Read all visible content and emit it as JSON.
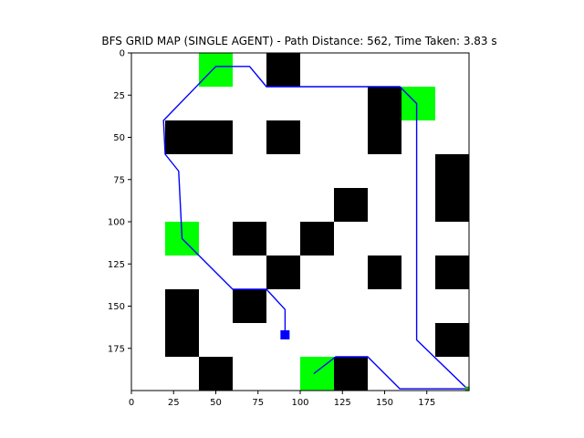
{
  "chart_data": {
    "type": "heatmap",
    "title": "BFS GRID MAP (SINGLE AGENT) - Path Distance: 562, Time Taken: 3.83 s",
    "xlim": [
      0,
      200
    ],
    "ylim": [
      200,
      0
    ],
    "x_ticks": [
      0,
      25,
      50,
      75,
      100,
      125,
      150,
      175
    ],
    "y_ticks": [
      0,
      25,
      50,
      75,
      100,
      125,
      150,
      175
    ],
    "grid": false,
    "colors": {
      "obstacle": "#000000",
      "goal": "#00ff00",
      "path": "#0000ff",
      "agent": "#0000ff",
      "background": "#ffffff"
    },
    "obstacles": [
      {
        "x": [
          80,
          100
        ],
        "y": [
          0,
          20
        ]
      },
      {
        "x": [
          20,
          60
        ],
        "y": [
          40,
          60
        ]
      },
      {
        "x": [
          80,
          100
        ],
        "y": [
          40,
          60
        ]
      },
      {
        "x": [
          140,
          160
        ],
        "y": [
          20,
          60
        ]
      },
      {
        "x": [
          180,
          200
        ],
        "y": [
          60,
          100
        ]
      },
      {
        "x": [
          120,
          140
        ],
        "y": [
          80,
          100
        ]
      },
      {
        "x": [
          60,
          80
        ],
        "y": [
          100,
          120
        ]
      },
      {
        "x": [
          100,
          120
        ],
        "y": [
          100,
          120
        ]
      },
      {
        "x": [
          80,
          100
        ],
        "y": [
          120,
          140
        ]
      },
      {
        "x": [
          140,
          160
        ],
        "y": [
          120,
          140
        ]
      },
      {
        "x": [
          180,
          200
        ],
        "y": [
          120,
          140
        ]
      },
      {
        "x": [
          20,
          40
        ],
        "y": [
          140,
          180
        ]
      },
      {
        "x": [
          60,
          80
        ],
        "y": [
          140,
          160
        ]
      },
      {
        "x": [
          180,
          200
        ],
        "y": [
          160,
          180
        ]
      },
      {
        "x": [
          40,
          60
        ],
        "y": [
          180,
          200
        ]
      },
      {
        "x": [
          120,
          140
        ],
        "y": [
          180,
          200
        ]
      }
    ],
    "goals": [
      {
        "x": [
          40,
          60
        ],
        "y": [
          0,
          20
        ]
      },
      {
        "x": [
          160,
          180
        ],
        "y": [
          20,
          40
        ]
      },
      {
        "x": [
          20,
          40
        ],
        "y": [
          100,
          120
        ]
      },
      {
        "x": [
          100,
          120
        ],
        "y": [
          180,
          200
        ]
      }
    ],
    "path": [
      [
        91,
        167
      ],
      [
        91,
        152
      ],
      [
        80,
        140
      ],
      [
        60,
        140
      ],
      [
        30,
        110
      ],
      [
        28,
        70
      ],
      [
        20,
        60
      ],
      [
        19,
        40
      ],
      [
        50,
        8
      ],
      [
        70,
        8
      ],
      [
        80,
        20
      ],
      [
        159,
        20
      ],
      [
        169,
        30
      ],
      [
        169,
        170
      ],
      [
        199,
        199
      ],
      [
        159,
        199
      ],
      [
        140,
        180
      ],
      [
        121,
        180
      ],
      [
        108,
        190
      ]
    ],
    "agent": {
      "x": 91,
      "y": 167
    },
    "end_marker": {
      "x": 199,
      "y": 199
    }
  }
}
